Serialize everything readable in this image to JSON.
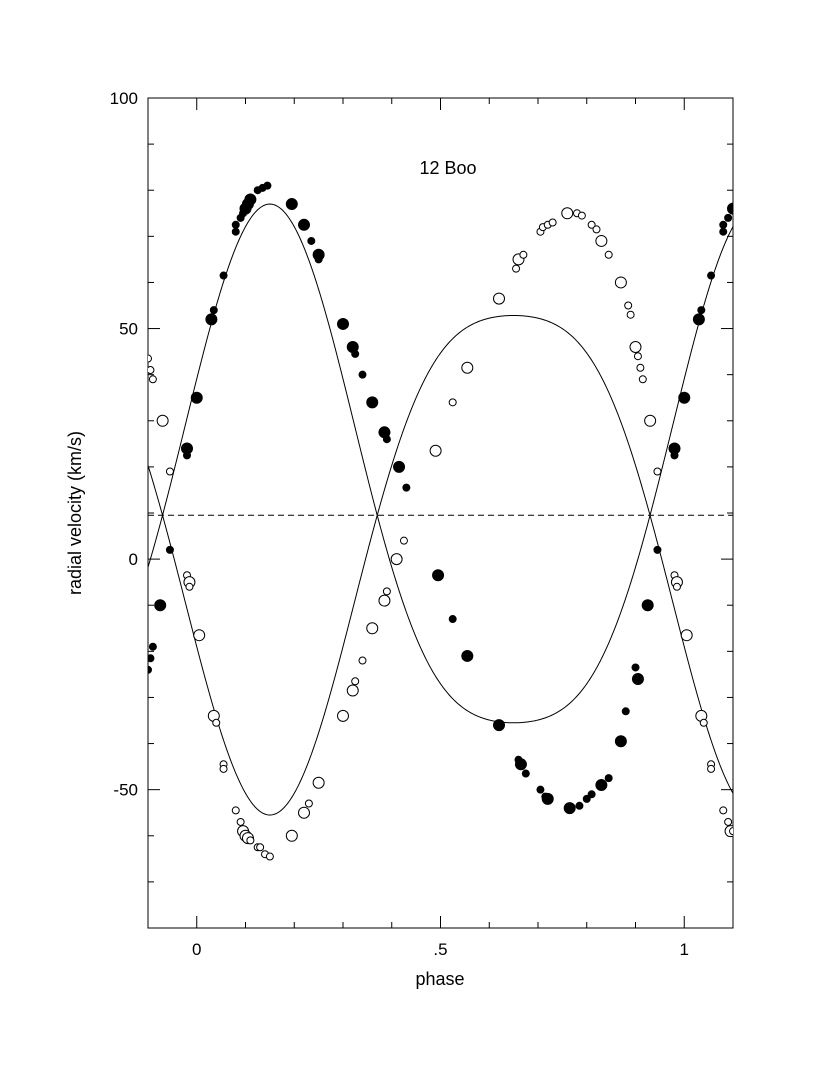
{
  "chart_data": {
    "type": "scatter",
    "title": "12 Boo",
    "xlabel": "phase",
    "ylabel": "radial velocity (km/s)",
    "xlim": [
      -0.1,
      1.1
    ],
    "ylim": [
      -80,
      100
    ],
    "x_ticks": [
      {
        "value": 0,
        "label": "0"
      },
      {
        "value": 0.5,
        "label": ".5"
      },
      {
        "value": 1,
        "label": "1"
      }
    ],
    "y_ticks": [
      {
        "value": 100,
        "label": "100"
      },
      {
        "value": 50,
        "label": "50"
      },
      {
        "value": 0,
        "label": "0"
      },
      {
        "value": -50,
        "label": "-50"
      }
    ],
    "x_minor_step": 0.1,
    "y_minor_step": 10,
    "systemic_velocity": 9.5,
    "orbit": {
      "primary_amplitude": 67.5,
      "secondary_amplitude": 65,
      "primary_max_phase": 0.15,
      "eccentricity_shape": 0.2
    },
    "series": [
      {
        "marker": "filled",
        "points": [
          [
            -0.1,
            -24,
            0
          ],
          [
            -0.095,
            -21.5,
            0
          ],
          [
            -0.09,
            -19,
            0
          ],
          [
            -0.075,
            -10,
            1
          ],
          [
            -0.055,
            2,
            0
          ],
          [
            -0.02,
            24,
            1
          ],
          [
            -0.02,
            22.5,
            0
          ],
          [
            0,
            35,
            1
          ],
          [
            0.03,
            52,
            1
          ],
          [
            0.035,
            54,
            0
          ],
          [
            0.055,
            61.5,
            0
          ],
          [
            0.08,
            71,
            0
          ],
          [
            0.08,
            72.5,
            0
          ],
          [
            0.09,
            74,
            0
          ],
          [
            0.095,
            75,
            0
          ],
          [
            0.1,
            76,
            1
          ],
          [
            0.105,
            77,
            1
          ],
          [
            0.11,
            78,
            1
          ],
          [
            0.125,
            80,
            0
          ],
          [
            0.135,
            80.5,
            0
          ],
          [
            0.145,
            81,
            0
          ],
          [
            0.195,
            77,
            1
          ],
          [
            0.22,
            72.5,
            1
          ],
          [
            0.235,
            69,
            0
          ],
          [
            0.25,
            66,
            1
          ],
          [
            0.25,
            65,
            0
          ],
          [
            0.3,
            51,
            1
          ],
          [
            0.32,
            46,
            1
          ],
          [
            0.325,
            44.5,
            0
          ],
          [
            0.34,
            40,
            0
          ],
          [
            0.36,
            34,
            1
          ],
          [
            0.385,
            27.5,
            1
          ],
          [
            0.39,
            26,
            0
          ],
          [
            0.415,
            20,
            1
          ],
          [
            0.43,
            15.5,
            0
          ],
          [
            0.495,
            -3.5,
            1
          ],
          [
            0.525,
            -13,
            0
          ],
          [
            0.555,
            -21,
            1
          ],
          [
            0.62,
            -36,
            1
          ],
          [
            0.66,
            -43.5,
            0
          ],
          [
            0.665,
            -44.5,
            1
          ],
          [
            0.675,
            -46.5,
            0
          ],
          [
            0.705,
            -50,
            0
          ],
          [
            0.715,
            -51.5,
            0
          ],
          [
            0.72,
            -52,
            1
          ],
          [
            0.765,
            -54,
            1
          ],
          [
            0.785,
            -53.5,
            0
          ],
          [
            0.8,
            -52,
            0
          ],
          [
            0.81,
            -51,
            0
          ],
          [
            0.83,
            -49,
            1
          ],
          [
            0.845,
            -47.5,
            0
          ],
          [
            0.87,
            -39.5,
            1
          ],
          [
            0.88,
            -33,
            0
          ],
          [
            0.905,
            -26,
            1
          ],
          [
            0.9,
            -23.5,
            0
          ],
          [
            0.925,
            -10,
            1
          ],
          [
            0.945,
            2,
            0
          ],
          [
            0.98,
            24,
            1
          ],
          [
            0.98,
            22.5,
            0
          ],
          [
            1.0,
            35,
            1
          ],
          [
            1.03,
            52,
            1
          ],
          [
            1.035,
            54,
            0
          ],
          [
            1.055,
            61.5,
            0
          ],
          [
            1.08,
            71,
            0
          ],
          [
            1.08,
            72.5,
            0
          ],
          [
            1.09,
            74,
            0
          ],
          [
            1.1,
            76,
            1
          ]
        ]
      },
      {
        "marker": "open",
        "points": [
          [
            -0.1,
            43.5,
            0
          ],
          [
            -0.095,
            41,
            0
          ],
          [
            -0.09,
            39,
            0
          ],
          [
            -0.07,
            30,
            1
          ],
          [
            -0.055,
            19,
            0
          ],
          [
            -0.02,
            -3.5,
            0
          ],
          [
            -0.015,
            -5,
            1
          ],
          [
            -0.015,
            -6,
            0
          ],
          [
            0.005,
            -16.5,
            1
          ],
          [
            0.035,
            -34,
            1
          ],
          [
            0.04,
            -35.5,
            0
          ],
          [
            0.055,
            -44.5,
            0
          ],
          [
            0.055,
            -45.5,
            0
          ],
          [
            0.08,
            -54.5,
            0
          ],
          [
            0.09,
            -57,
            0
          ],
          [
            0.095,
            -59,
            1
          ],
          [
            0.1,
            -60,
            1
          ],
          [
            0.105,
            -60.5,
            1
          ],
          [
            0.11,
            -61,
            0
          ],
          [
            0.125,
            -62.5,
            0
          ],
          [
            0.13,
            -62.5,
            0
          ],
          [
            0.14,
            -64,
            0
          ],
          [
            0.15,
            -64.5,
            0
          ],
          [
            0.195,
            -60,
            1
          ],
          [
            0.22,
            -55,
            1
          ],
          [
            0.23,
            -53,
            0
          ],
          [
            0.25,
            -48.5,
            1
          ],
          [
            0.3,
            -34,
            1
          ],
          [
            0.32,
            -28.5,
            1
          ],
          [
            0.325,
            -26.5,
            0
          ],
          [
            0.34,
            -22,
            0
          ],
          [
            0.36,
            -15,
            1
          ],
          [
            0.385,
            -9,
            1
          ],
          [
            0.39,
            -7,
            0
          ],
          [
            0.41,
            0,
            1
          ],
          [
            0.425,
            4,
            0
          ],
          [
            0.49,
            23.5,
            1
          ],
          [
            0.525,
            34,
            0
          ],
          [
            0.555,
            41.5,
            1
          ],
          [
            0.62,
            56.5,
            1
          ],
          [
            0.655,
            63,
            0
          ],
          [
            0.66,
            65,
            1
          ],
          [
            0.67,
            66,
            0
          ],
          [
            0.705,
            71,
            0
          ],
          [
            0.71,
            72,
            0
          ],
          [
            0.72,
            72.5,
            0
          ],
          [
            0.73,
            73,
            0
          ],
          [
            0.76,
            75,
            1
          ],
          [
            0.78,
            75,
            0
          ],
          [
            0.79,
            74.5,
            0
          ],
          [
            0.81,
            72.5,
            0
          ],
          [
            0.82,
            71.5,
            0
          ],
          [
            0.83,
            69,
            1
          ],
          [
            0.845,
            66,
            0
          ],
          [
            0.87,
            60,
            1
          ],
          [
            0.885,
            55,
            0
          ],
          [
            0.89,
            53,
            0
          ],
          [
            0.9,
            46,
            1
          ],
          [
            0.905,
            44,
            0
          ],
          [
            0.91,
            41.5,
            0
          ],
          [
            0.915,
            39,
            0
          ],
          [
            0.93,
            30,
            1
          ],
          [
            0.945,
            19,
            0
          ],
          [
            0.98,
            -3.5,
            0
          ],
          [
            0.985,
            -5,
            1
          ],
          [
            0.985,
            -6,
            0
          ],
          [
            1.005,
            -16.5,
            1
          ],
          [
            1.035,
            -34,
            1
          ],
          [
            1.04,
            -35.5,
            0
          ],
          [
            1.055,
            -44.5,
            0
          ],
          [
            1.055,
            -45.5,
            0
          ],
          [
            1.08,
            -54.5,
            0
          ],
          [
            1.09,
            -57,
            0
          ],
          [
            1.095,
            -59,
            1
          ],
          [
            1.1,
            -59,
            0
          ]
        ]
      }
    ]
  }
}
